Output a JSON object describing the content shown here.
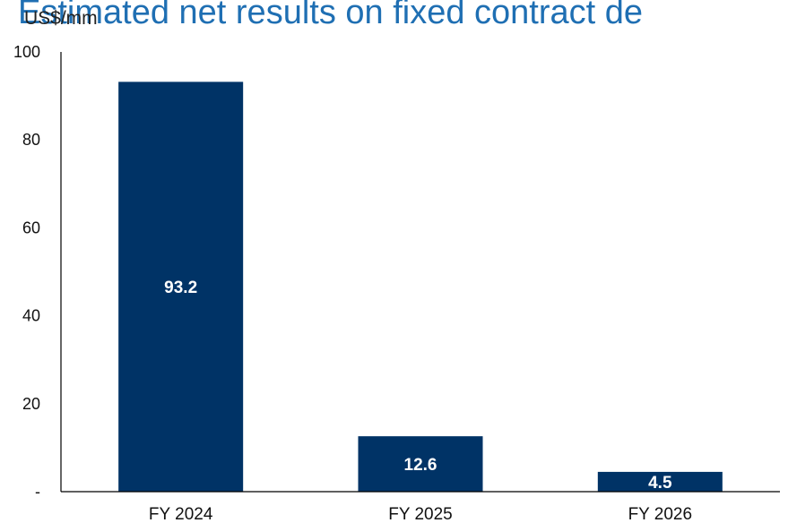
{
  "chart_data": {
    "type": "bar",
    "title": "Estimated net results on fixed contract de",
    "ylabel": "US$/mm",
    "categories": [
      "FY 2024",
      "FY 2025",
      "FY 2026"
    ],
    "values": [
      93.2,
      12.6,
      4.5
    ],
    "value_labels": [
      "93.2",
      "12.6",
      "4.5"
    ],
    "ylim": [
      0,
      100
    ],
    "yticks": [
      {
        "value": 0,
        "label": "-"
      },
      {
        "value": 20,
        "label": "20"
      },
      {
        "value": 40,
        "label": "40"
      },
      {
        "value": 60,
        "label": "60"
      },
      {
        "value": 80,
        "label": "80"
      },
      {
        "value": 100,
        "label": "100"
      }
    ],
    "grid": false,
    "bar_color": "#003366",
    "title_color": "#1f6fb3"
  }
}
